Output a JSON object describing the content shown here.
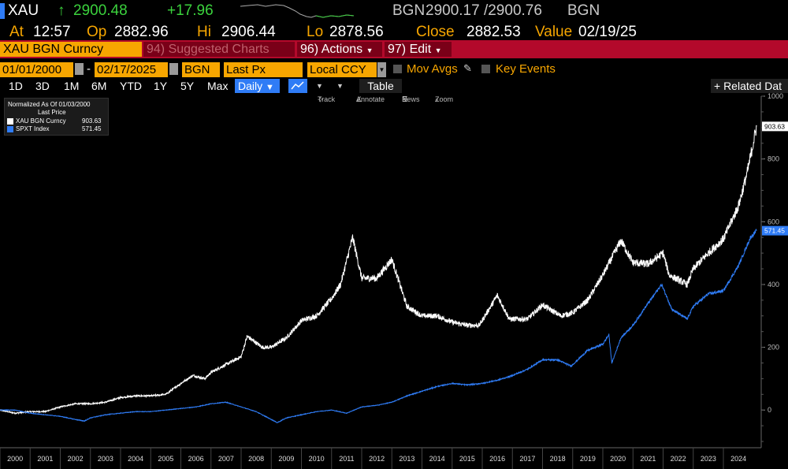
{
  "quote": {
    "ticker": "XAU",
    "arrow": "↑",
    "last": "2900.48",
    "change": "+17.96",
    "bid_label": "BGN",
    "bid_ask": "2900.17 /2900.76",
    "ask_label": "BGN",
    "at_label": "At",
    "time": "12:57",
    "op_label": "Op",
    "open": "2882.96",
    "hi_label": "Hi",
    "high": "2906.44",
    "lo_label": "Lo",
    "low": "2878.56",
    "close_label": "Close",
    "close": "2882.53",
    "value_label": "Value",
    "value_date": "02/19/25"
  },
  "toolbar": {
    "security": "XAU BGN Curncy",
    "suggested": "94) Suggested Charts",
    "actions": "96) Actions",
    "edit": "97) Edit",
    "start_date": "01/01/2000",
    "date_sep": "-",
    "end_date": "02/17/2025",
    "source": "BGN",
    "field": "Last Px",
    "currency": "Local CCY",
    "mov_avgs": "Mov Avgs",
    "key_events": "Key Events",
    "timeframes": [
      "1D",
      "3D",
      "1M",
      "6M",
      "YTD",
      "1Y",
      "5Y",
      "Max"
    ],
    "frequency": "Daily",
    "table": "Table",
    "related": "+ Related Dat",
    "tools": {
      "track": "Track",
      "annotate": "Annotate",
      "news": "News",
      "zoom": "Zoom"
    }
  },
  "legend": {
    "title": "Normalized As Of 01/03/2000",
    "subtitle": "Last Price",
    "items": [
      {
        "name": "XAU BGN Curncy",
        "value": "903.63",
        "color": "#ffffff"
      },
      {
        "name": "SPXT Index",
        "value": "571.45",
        "color": "#2f7cf6"
      }
    ]
  },
  "chart_data": {
    "type": "line",
    "ylim": [
      -120,
      1000
    ],
    "yticks": [
      0,
      200,
      400,
      600,
      800,
      1000
    ],
    "xlim": [
      2000,
      2025.15
    ],
    "x_tick_labels": [
      "2000",
      "2001",
      "2002",
      "2003",
      "2004",
      "2005",
      "2006",
      "2007",
      "2008",
      "2009",
      "2010",
      "2011",
      "2012",
      "2013",
      "2014",
      "2015",
      "2016",
      "2017",
      "2018",
      "2019",
      "2020",
      "2021",
      "2022",
      "2023",
      "2024"
    ],
    "series": [
      {
        "name": "XAU BGN Curncy",
        "color": "#ffffff",
        "last_label": "903.63",
        "x": [
          2000,
          2000.5,
          2001,
          2001.5,
          2002,
          2002.5,
          2003,
          2003.5,
          2004,
          2004.5,
          2005,
          2005.5,
          2006,
          2006.4,
          2006.8,
          2007,
          2007.5,
          2008,
          2008.2,
          2008.7,
          2009,
          2009.5,
          2010,
          2010.5,
          2011,
          2011.3,
          2011.7,
          2012,
          2012.5,
          2013,
          2013.3,
          2013.5,
          2014,
          2014.5,
          2015,
          2015.5,
          2015.9,
          2016.5,
          2016.9,
          2017.5,
          2018,
          2018.6,
          2019,
          2019.5,
          2020,
          2020.6,
          2021,
          2021.5,
          2022,
          2022.2,
          2022.8,
          2023,
          2023.5,
          2024,
          2024.5,
          2024.8,
          2025.1
        ],
        "y": [
          0,
          -10,
          -5,
          -5,
          10,
          20,
          20,
          25,
          40,
          45,
          45,
          50,
          85,
          110,
          100,
          120,
          145,
          170,
          235,
          200,
          200,
          230,
          285,
          300,
          355,
          400,
          550,
          420,
          420,
          480,
          390,
          330,
          300,
          300,
          280,
          270,
          270,
          365,
          290,
          290,
          335,
          300,
          310,
          350,
          430,
          540,
          470,
          465,
          500,
          430,
          400,
          450,
          500,
          545,
          650,
          760,
          903.63
        ]
      },
      {
        "name": "SPXT Index",
        "color": "#2f7cf6",
        "last_label": "571.45",
        "x": [
          2000,
          2000.5,
          2001,
          2001.5,
          2002,
          2002.5,
          2002.8,
          2003,
          2003.5,
          2004,
          2004.5,
          2005,
          2005.5,
          2006,
          2006.5,
          2007,
          2007.5,
          2008,
          2008.5,
          2009,
          2009.2,
          2009.5,
          2010,
          2010.5,
          2011,
          2011.5,
          2012,
          2012.5,
          2013,
          2013.5,
          2014,
          2014.5,
          2015,
          2015.5,
          2016,
          2016.5,
          2017,
          2017.5,
          2018,
          2018.5,
          2018.95,
          2019.5,
          2020,
          2020.2,
          2020.3,
          2020.6,
          2021,
          2021.5,
          2021.95,
          2022.3,
          2022.8,
          2023,
          2023.5,
          2024,
          2024.5,
          2024.9,
          2025.1
        ],
        "y": [
          0,
          0,
          -10,
          -15,
          -20,
          -30,
          -35,
          -25,
          -15,
          -10,
          -5,
          -5,
          0,
          5,
          10,
          20,
          25,
          10,
          -5,
          -30,
          -40,
          -25,
          -15,
          -5,
          0,
          -10,
          10,
          15,
          25,
          45,
          60,
          75,
          85,
          80,
          85,
          95,
          110,
          130,
          160,
          160,
          140,
          190,
          210,
          240,
          150,
          230,
          270,
          340,
          400,
          320,
          290,
          330,
          370,
          380,
          460,
          550,
          571.45
        ]
      }
    ]
  }
}
